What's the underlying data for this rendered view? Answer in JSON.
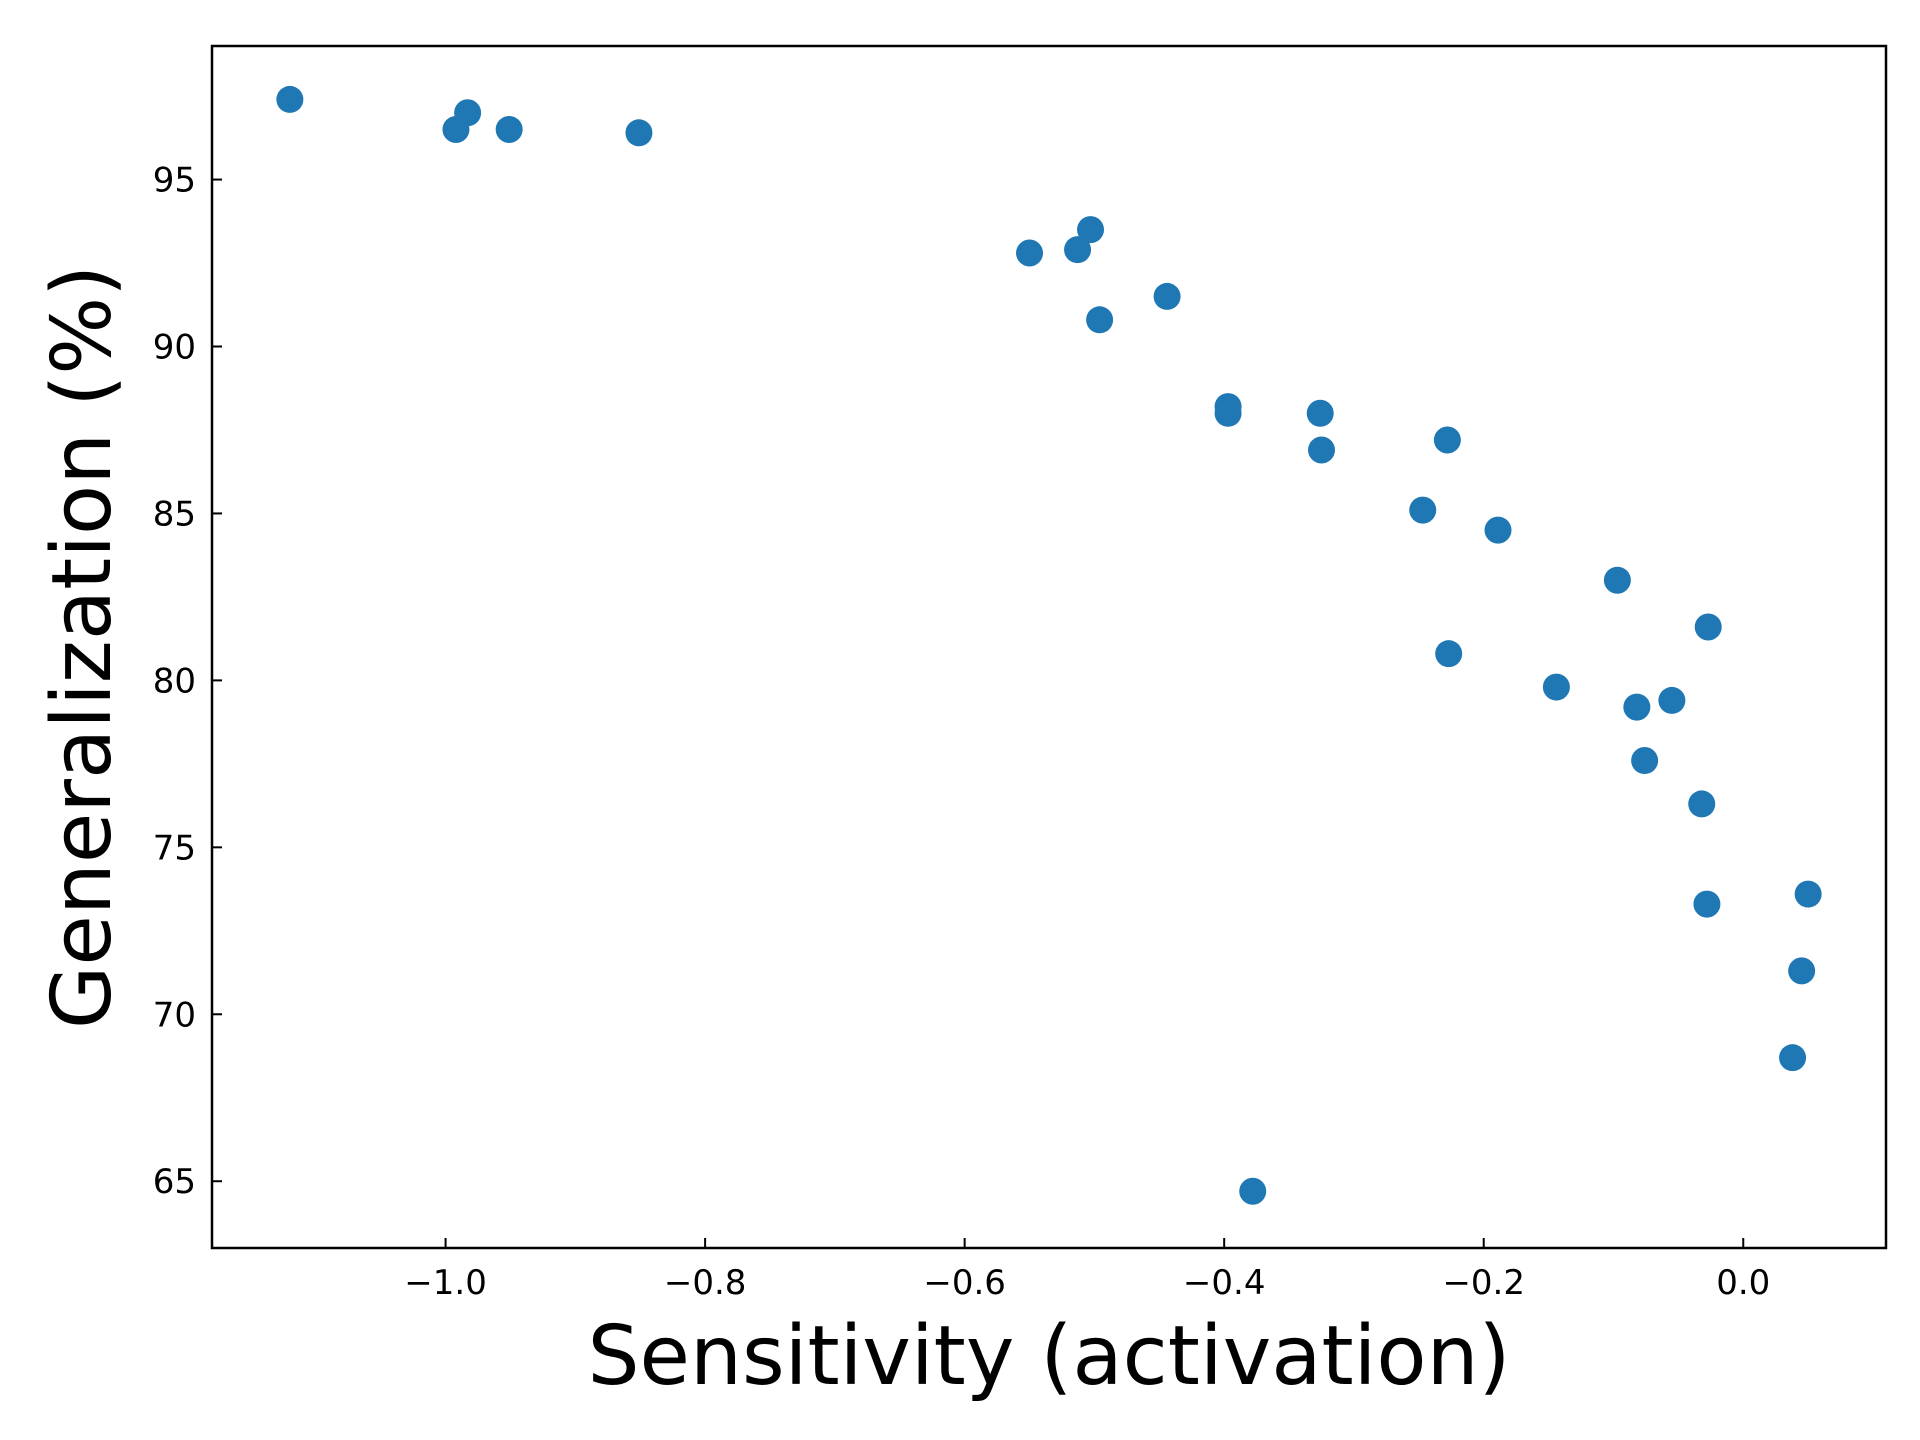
{
  "chart_data": {
    "type": "scatter",
    "xlabel": "Sensitivity (activation)",
    "ylabel": "Generalization (%)",
    "xlim": [
      -1.18,
      0.11
    ],
    "ylim": [
      63.0,
      99.0
    ],
    "grid": false,
    "x_ticks": [
      -1.0,
      -0.8,
      -0.6,
      -0.4,
      -0.2,
      0.0
    ],
    "x_tick_labels": [
      "−1.0",
      "−0.8",
      "−0.6",
      "−0.4",
      "−0.2",
      "0.0"
    ],
    "y_ticks": [
      65,
      70,
      75,
      80,
      85,
      90,
      95
    ],
    "y_tick_labels": [
      "65",
      "70",
      "75",
      "80",
      "85",
      "90",
      "95"
    ],
    "series": [
      {
        "color": "#1f77b4",
        "points": [
          {
            "x": -1.12,
            "y": 97.4
          },
          {
            "x": -0.983,
            "y": 97.0
          },
          {
            "x": -0.992,
            "y": 96.5
          },
          {
            "x": -0.951,
            "y": 96.5
          },
          {
            "x": -0.851,
            "y": 96.4
          },
          {
            "x": -0.55,
            "y": 92.8
          },
          {
            "x": -0.513,
            "y": 92.9
          },
          {
            "x": -0.503,
            "y": 93.5
          },
          {
            "x": -0.496,
            "y": 90.8
          },
          {
            "x": -0.444,
            "y": 91.5
          },
          {
            "x": -0.397,
            "y": 88.2
          },
          {
            "x": -0.397,
            "y": 88.0
          },
          {
            "x": -0.378,
            "y": 64.7
          },
          {
            "x": -0.326,
            "y": 88.0
          },
          {
            "x": -0.325,
            "y": 86.9
          },
          {
            "x": -0.247,
            "y": 85.1
          },
          {
            "x": -0.228,
            "y": 87.2
          },
          {
            "x": -0.227,
            "y": 80.8
          },
          {
            "x": -0.189,
            "y": 84.5
          },
          {
            "x": -0.144,
            "y": 79.8
          },
          {
            "x": -0.097,
            "y": 83.0
          },
          {
            "x": -0.082,
            "y": 79.2
          },
          {
            "x": -0.076,
            "y": 77.6
          },
          {
            "x": -0.055,
            "y": 79.4
          },
          {
            "x": -0.032,
            "y": 76.3
          },
          {
            "x": -0.027,
            "y": 81.6
          },
          {
            "x": -0.028,
            "y": 73.3
          },
          {
            "x": 0.038,
            "y": 68.7
          },
          {
            "x": 0.045,
            "y": 71.3
          },
          {
            "x": 0.05,
            "y": 73.6
          }
        ]
      }
    ]
  }
}
